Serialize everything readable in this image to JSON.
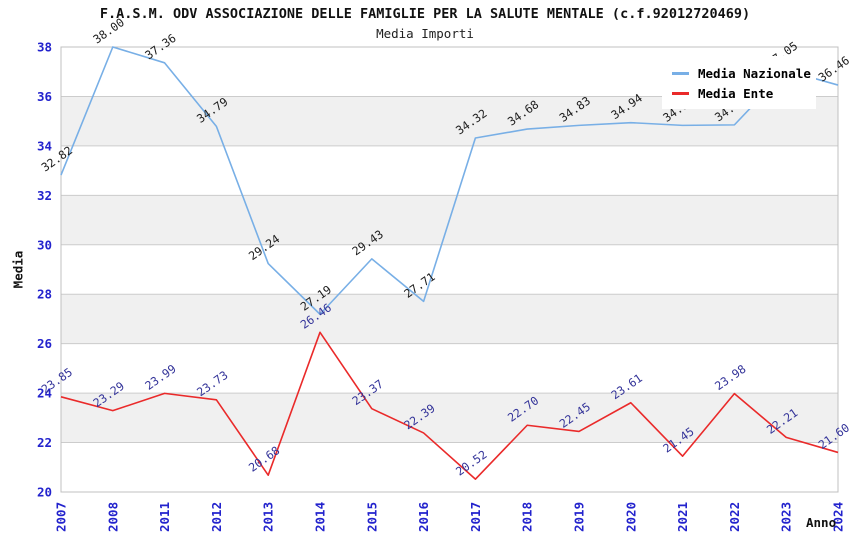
{
  "chart_data": {
    "type": "line",
    "title": "F.A.S.M. ODV ASSOCIAZIONE DELLE FAMIGLIE PER LA SALUTE MENTALE (c.f.92012720469)",
    "subtitle": "Media Importi",
    "xlabel": "Anno",
    "ylabel": "Media",
    "categories": [
      "2007",
      "2008",
      "2011",
      "2012",
      "2013",
      "2014",
      "2015",
      "2016",
      "2017",
      "2018",
      "2019",
      "2020",
      "2021",
      "2022",
      "2023",
      "2024"
    ],
    "yticks": [
      20,
      22,
      24,
      26,
      28,
      30,
      32,
      34,
      36,
      38
    ],
    "ylim": [
      20,
      38
    ],
    "grid": "horizontal gridlines with alternating gray bands",
    "legend_position": "top-right inset",
    "series": [
      {
        "name": "Media Nazionale",
        "color": "#78afe6",
        "label_color": "#1c1c1c",
        "values": [
          32.82,
          38.0,
          37.36,
          34.79,
          29.24,
          27.19,
          29.43,
          27.71,
          34.32,
          34.68,
          34.83,
          34.94,
          34.83,
          34.85,
          37.05,
          36.46
        ]
      },
      {
        "name": "Media Ente",
        "color": "#ea2a2a",
        "label_color": "#333399",
        "values": [
          23.85,
          23.29,
          23.99,
          23.73,
          20.68,
          26.46,
          23.37,
          22.39,
          20.52,
          22.7,
          22.45,
          23.61,
          21.45,
          23.98,
          22.21,
          21.6
        ]
      }
    ],
    "colors": {
      "tick_label": "#2323cd",
      "gridline": "#cccccc",
      "band": "#f0f0f0",
      "plot_border": "#c0c0c0"
    }
  }
}
